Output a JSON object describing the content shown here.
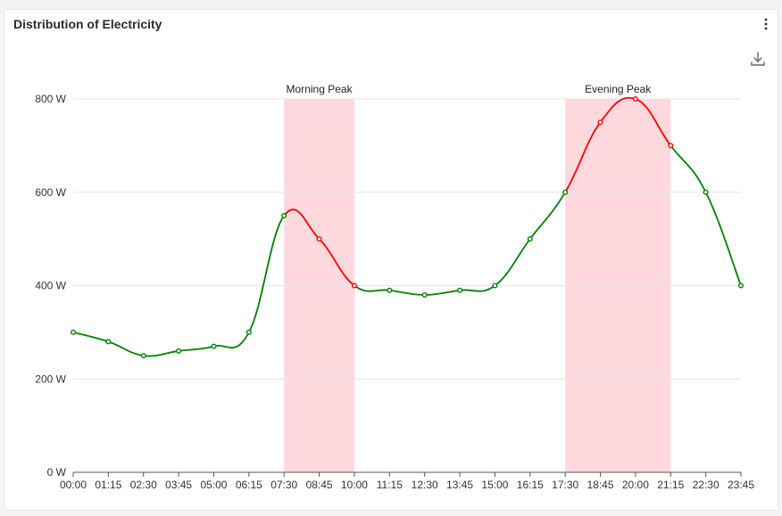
{
  "card": {
    "title": "Distribution of Electricity",
    "menu_icon": "more-vertical-icon",
    "download_icon": "download-icon"
  },
  "chart_data": {
    "type": "line",
    "title": "Distribution of Electricity",
    "x": [
      "00:00",
      "01:15",
      "02:30",
      "03:45",
      "05:00",
      "06:15",
      "07:30",
      "08:45",
      "10:00",
      "11:15",
      "12:30",
      "13:45",
      "15:00",
      "16:15",
      "17:30",
      "18:45",
      "20:00",
      "21:15",
      "22:30",
      "23:45"
    ],
    "values": [
      300,
      280,
      250,
      260,
      270,
      300,
      550,
      500,
      400,
      390,
      380,
      390,
      400,
      500,
      600,
      750,
      800,
      700,
      600,
      400
    ],
    "yticks": [
      "0 W",
      "200 W",
      "400 W",
      "600 W",
      "800 W"
    ],
    "ylim": [
      0,
      800
    ],
    "grid": true,
    "colors": {
      "line": "#008000",
      "peak_line": "#ff0000",
      "band": "#ffd9de"
    },
    "bands": [
      {
        "label": "Morning Peak",
        "from": "07:30",
        "to": "10:00"
      },
      {
        "label": "Evening Peak",
        "from": "17:30",
        "to": "21:15"
      }
    ]
  }
}
